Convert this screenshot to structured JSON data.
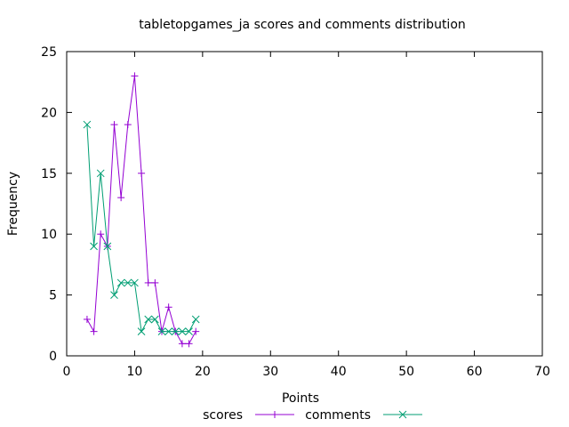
{
  "chart_data": {
    "type": "line",
    "title": "tabletopgames_ja scores and comments distribution",
    "xlabel": "Points",
    "ylabel": "Frequency",
    "xlim": [
      0,
      70
    ],
    "ylim": [
      0,
      25
    ],
    "xticks": [
      0,
      10,
      20,
      30,
      40,
      50,
      60,
      70
    ],
    "yticks": [
      0,
      5,
      10,
      15,
      20,
      25
    ],
    "grid": false,
    "legend_placement": "bottom-center",
    "series": [
      {
        "name": "scores",
        "color": "#9400d3",
        "marker": "plus",
        "x": [
          3,
          4,
          5,
          6,
          7,
          8,
          9,
          10,
          11,
          12,
          13,
          14,
          15,
          16,
          17,
          18,
          19
        ],
        "y": [
          3,
          2,
          10,
          9,
          19,
          13,
          19,
          23,
          15,
          6,
          6,
          2,
          4,
          2,
          1,
          1,
          2
        ]
      },
      {
        "name": "comments",
        "color": "#009e73",
        "marker": "cross",
        "x": [
          3,
          4,
          5,
          6,
          7,
          8,
          9,
          10,
          11,
          12,
          13,
          14,
          15,
          16,
          17,
          18,
          19
        ],
        "y": [
          19,
          9,
          15,
          9,
          5,
          6,
          6,
          6,
          2,
          3,
          3,
          2,
          2,
          2,
          2,
          2,
          3
        ]
      }
    ]
  }
}
